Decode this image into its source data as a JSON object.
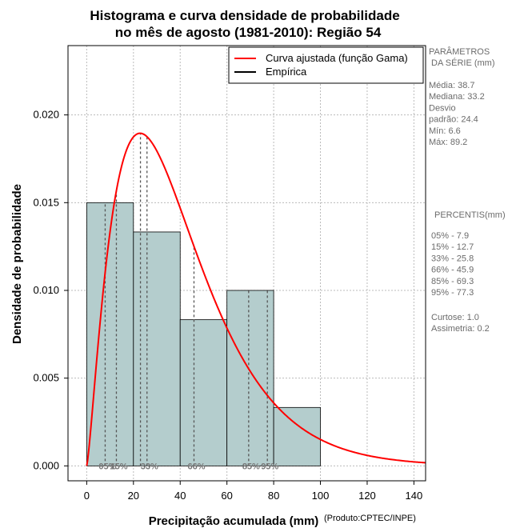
{
  "chart_data": {
    "type": "histogram",
    "title": [
      "Histograma e curva densidade de probabilidade",
      "no mês de agosto (1981-2010): Região 54"
    ],
    "xlabel": "Precipitação acumulada (mm)",
    "ylabel": "Densidade de probabilidade",
    "credit": "(Produto:CPTEC/INPE)",
    "xlim": [
      -8,
      145
    ],
    "ylim": [
      -0.00085,
      0.02395
    ],
    "xticks": [
      0,
      20,
      40,
      60,
      80,
      100,
      120,
      140
    ],
    "yticks": [
      0.0,
      0.005,
      0.01,
      0.015,
      0.02
    ],
    "ytick_labels": [
      "0.000",
      "0.005",
      "0.010",
      "0.015",
      "0.020"
    ],
    "grid": true,
    "bins": [
      {
        "x0": 0,
        "x1": 20,
        "density": 0.015
      },
      {
        "x0": 20,
        "x1": 40,
        "density": 0.01333
      },
      {
        "x0": 40,
        "x1": 60,
        "density": 0.00833
      },
      {
        "x0": 60,
        "x1": 80,
        "density": 0.01
      },
      {
        "x0": 80,
        "x1": 100,
        "density": 0.00333
      }
    ],
    "bar_color": "#b4cdcd",
    "gamma_fit": {
      "shape": 2.33,
      "scale": 17.16,
      "x_range": [
        0,
        145
      ],
      "color": "#ff0000"
    },
    "mode_line_x": 23.0,
    "percentiles": [
      {
        "label": "05%",
        "value": 7.9
      },
      {
        "label": "15%",
        "value": 12.7
      },
      {
        "label": "33%",
        "value": 25.8
      },
      {
        "label": "66%",
        "value": 45.9
      },
      {
        "label": "85%",
        "value": 69.3
      },
      {
        "label": "95%",
        "value": 77.3
      }
    ],
    "legend": {
      "position": "top-right",
      "entries": [
        {
          "label": "Curva ajustada (função Gama)",
          "color": "#ff0000"
        },
        {
          "label": "Empírica",
          "color": "#000000"
        }
      ]
    }
  },
  "stats_panel": {
    "params_title": [
      "PARÂMETROS",
      " DA SÉRIE (mm)"
    ],
    "stats": [
      "Média:  38.7",
      "Mediana:  33.2",
      "Desvio",
      "padrão:  24.4",
      "Mín:  6.6",
      "Máx:  89.2"
    ],
    "percentis_title": "PERCENTIS(mm)",
    "percentis": [
      "05% -   7.9",
      "15% -   12.7",
      "33% -   25.8",
      "66% -   45.9",
      "85% -   69.3",
      "95% -   77.3"
    ],
    "extra": [
      "Curtose:  1.0",
      "Assimetria:  0.2"
    ]
  }
}
